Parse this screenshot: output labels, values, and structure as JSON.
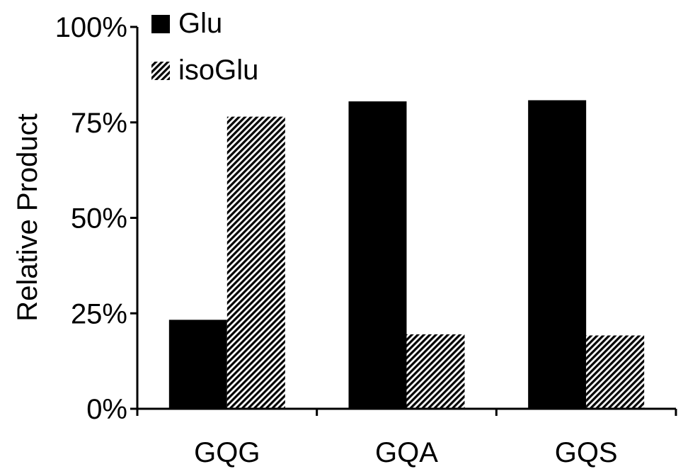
{
  "chart_data": {
    "type": "bar",
    "title": "",
    "xlabel": "",
    "ylabel": "Relative Product",
    "categories": [
      "GQG",
      "GQA",
      "GQS"
    ],
    "series": [
      {
        "name": "Glu",
        "values": [
          23.3,
          80.5,
          80.8
        ],
        "fill": "solid",
        "color": "#000000"
      },
      {
        "name": "isoGlu",
        "values": [
          76.5,
          19.5,
          19.2
        ],
        "fill": "hatched",
        "color": "#000000"
      }
    ],
    "ylim": [
      0,
      100
    ],
    "yticks": [
      0,
      25,
      50,
      75,
      100
    ],
    "ytick_labels": [
      "0%",
      "25%",
      "50%",
      "75%",
      "100%"
    ],
    "grid": false,
    "legend_position": "top-left"
  }
}
